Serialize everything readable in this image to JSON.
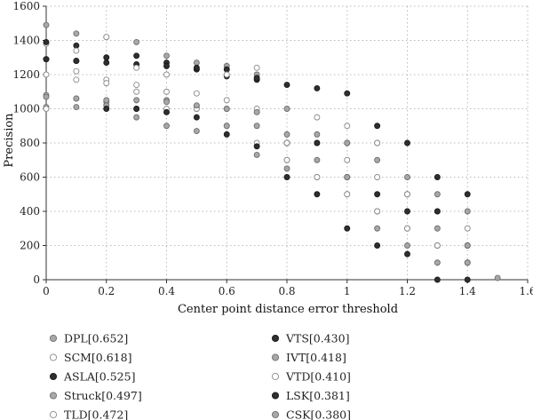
{
  "chart_data": {
    "type": "scatter",
    "xlabel": "Center point distance error threshold",
    "ylabel": "Precision",
    "xlim": [
      0,
      1.6
    ],
    "ylim": [
      0,
      1600
    ],
    "xticks": [
      "0",
      "0.2",
      "0.4",
      "0.6",
      "0.8",
      "1",
      "1.2",
      "1.4",
      "1.6"
    ],
    "xtick_values": [
      0,
      0.2,
      0.4,
      0.6,
      0.8,
      1.0,
      1.2,
      1.4,
      1.6
    ],
    "yticks": [
      "0",
      "200",
      "400",
      "600",
      "800",
      "1000",
      "1200",
      "1400",
      "1600"
    ],
    "ytick_values": [
      0,
      200,
      400,
      600,
      800,
      1000,
      1200,
      1400,
      1600
    ],
    "grid": true,
    "legend_position": "bottom",
    "series": [
      {
        "name": "DPL[0.652]",
        "fill": "#a8a8a8",
        "stroke": "#6e6e6e",
        "x": [
          0,
          0.1,
          0.2,
          0.3,
          0.4,
          0.5,
          0.6,
          0.7,
          0.8,
          0.9,
          1.0,
          1.1,
          1.2,
          1.3,
          1.4
        ],
        "y": [
          1490,
          1440,
          1420,
          1390,
          1310,
          1270,
          1250,
          1200,
          1000,
          800,
          800,
          700,
          600,
          500,
          400
        ]
      },
      {
        "name": "SCM[0.618]",
        "fill": "#ffffff",
        "stroke": "#8a8a8a",
        "x": [
          0,
          0.1,
          0.2,
          0.3,
          0.4,
          0.5,
          0.6,
          0.7,
          0.8,
          0.9,
          1.0,
          1.1,
          1.2,
          1.3,
          1.4
        ],
        "y": [
          1380,
          1220,
          1170,
          1140,
          1100,
          1090,
          1050,
          1000,
          800,
          800,
          700,
          600,
          500,
          400,
          300
        ]
      },
      {
        "name": "ASLA[0.525]",
        "fill": "#2f2f2f",
        "stroke": "#1a1a1a",
        "x": [
          0,
          0.1,
          0.2,
          0.3,
          0.4,
          0.5,
          0.6,
          0.7,
          0.8,
          0.9,
          1.0,
          1.1,
          1.2,
          1.3,
          1.4
        ],
        "y": [
          1390,
          1370,
          1300,
          1310,
          1270,
          1230,
          1190,
          1170,
          1140,
          1120,
          1090,
          900,
          800,
          600,
          500
        ]
      },
      {
        "name": "Struck[0.497]",
        "fill": "#a8a8a8",
        "stroke": "#6e6e6e",
        "x": [
          0,
          0.1,
          0.2,
          0.3,
          0.4,
          0.5,
          0.6,
          0.7,
          0.8,
          0.9,
          1.0,
          1.1,
          1.2,
          1.3,
          1.4
        ],
        "y": [
          1080,
          1060,
          1040,
          1000,
          900,
          870,
          1000,
          730,
          700,
          600,
          500,
          400,
          300,
          200,
          100
        ]
      },
      {
        "name": "TLD[0.472]",
        "fill": "#ffffff",
        "stroke": "#8a8a8a",
        "x": [
          0,
          0.1,
          0.2,
          0.3,
          0.4,
          0.5,
          0.6,
          0.7,
          0.8,
          0.9,
          1.0,
          1.1,
          1.2,
          1.3,
          1.4
        ],
        "y": [
          1200,
          1170,
          1150,
          1100,
          1000,
          1000,
          900,
          800,
          700,
          600,
          500,
          400,
          300,
          200,
          100
        ]
      },
      {
        "name": "VTS[0.430]",
        "fill": "#2f2f2f",
        "stroke": "#1a1a1a",
        "x": [
          0,
          0.1,
          0.2,
          0.3,
          0.4,
          0.5,
          0.6,
          0.7,
          0.8,
          0.9,
          1.0,
          1.1,
          1.2,
          1.3,
          1.4
        ],
        "y": [
          1290,
          1280,
          1270,
          1260,
          1250,
          1240,
          1230,
          1180,
          800,
          800,
          600,
          500,
          400,
          400,
          200
        ]
      },
      {
        "name": "IVT[0.418]",
        "fill": "#a8a8a8",
        "stroke": "#6e6e6e",
        "x": [
          0,
          0.1,
          0.2,
          0.3,
          0.4,
          0.5,
          0.6,
          0.7,
          0.8,
          0.9,
          1.0,
          1.1,
          1.2,
          1.3,
          1.4
        ],
        "y": [
          1010,
          1010,
          1020,
          950,
          1050,
          1010,
          1000,
          980,
          850,
          850,
          800,
          800,
          500,
          300,
          200
        ]
      },
      {
        "name": "VTD[0.410]",
        "fill": "#ffffff",
        "stroke": "#8a8a8a",
        "x": [
          0,
          0.1,
          0.2,
          0.3,
          0.4,
          0.5,
          0.6,
          0.7,
          0.8,
          0.9,
          1.0,
          1.1,
          1.2,
          1.3,
          1.4
        ],
        "y": [
          1000,
          1340,
          1420,
          1240,
          1200,
          1000,
          1200,
          1240,
          800,
          950,
          900,
          800,
          500,
          200,
          100
        ]
      },
      {
        "name": "LSK[0.381]",
        "fill": "#2f2f2f",
        "stroke": "#1a1a1a",
        "x": [
          0,
          0.1,
          0.2,
          0.3,
          0.4,
          0.5,
          0.6,
          0.7,
          0.8,
          0.9,
          1.0,
          1.1,
          1.2,
          1.3,
          1.4
        ],
        "y": [
          1290,
          1280,
          1000,
          1000,
          980,
          950,
          850,
          780,
          600,
          500,
          300,
          200,
          150,
          0,
          0
        ]
      },
      {
        "name": "CSK[0.380]",
        "fill": "#a8a8a8",
        "stroke": "#6e6e6e",
        "x": [
          0,
          0.1,
          0.2,
          0.3,
          0.4,
          0.5,
          0.6,
          0.7,
          0.8,
          0.9,
          1.0,
          1.1,
          1.2,
          1.3,
          1.4,
          1.5
        ],
        "y": [
          1070,
          1060,
          1050,
          1050,
          1040,
          1020,
          900,
          900,
          650,
          700,
          600,
          300,
          200,
          100,
          100,
          10
        ]
      }
    ]
  }
}
